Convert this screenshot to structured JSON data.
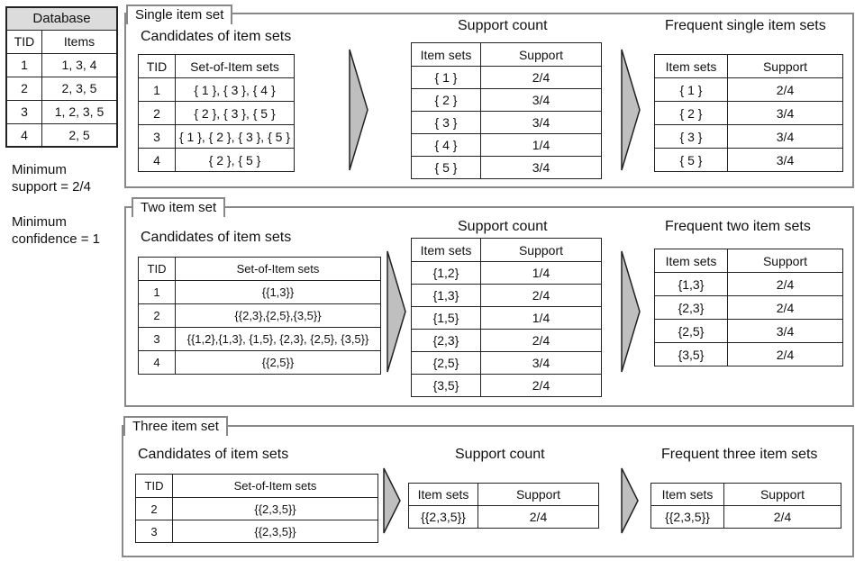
{
  "database": {
    "title": "Database",
    "headers": [
      "TID",
      "Items"
    ],
    "rows": [
      [
        "1",
        "1, 3, 4"
      ],
      [
        "2",
        "2, 3, 5"
      ],
      [
        "3",
        "1, 2, 3, 5"
      ],
      [
        "4",
        "2, 5"
      ]
    ]
  },
  "params": {
    "min_support": "Minimum\nsupport = 2/4",
    "min_support_l1": "Minimum",
    "min_support_l2": "support = 2/4",
    "min_conf_l1": "Minimum",
    "min_conf_l2": "confidence = 1"
  },
  "single": {
    "tab": "Single item set",
    "candidates_title": "Candidates of item sets",
    "cand_headers": [
      "TID",
      "Set-of-Item sets"
    ],
    "cand_rows": [
      [
        "1",
        "{ 1 }, { 3 }, { 4 }"
      ],
      [
        "2",
        "{ 2 }, { 3 }, { 5 }"
      ],
      [
        "3",
        "{ 1 }, { 2 }, { 3 }, { 5 }"
      ],
      [
        "4",
        "{ 2 }, { 5 }"
      ]
    ],
    "support_title": "Support count",
    "sup_headers": [
      "Item sets",
      "Support"
    ],
    "sup_rows": [
      [
        "{ 1 }",
        "2/4"
      ],
      [
        "{ 2 }",
        "3/4"
      ],
      [
        "{ 3 }",
        "3/4"
      ],
      [
        "{ 4 }",
        "1/4"
      ],
      [
        "{ 5 }",
        "3/4"
      ]
    ],
    "frequent_title": "Frequent single item sets",
    "freq_headers": [
      "Item sets",
      "Support"
    ],
    "freq_rows": [
      [
        "{ 1 }",
        "2/4"
      ],
      [
        "{ 2 }",
        "3/4"
      ],
      [
        "{ 3 }",
        "3/4"
      ],
      [
        "{ 5 }",
        "3/4"
      ]
    ]
  },
  "two": {
    "tab": "Two item set",
    "candidates_title": "Candidates of item sets",
    "cand_headers": [
      "TID",
      "Set-of-Item sets"
    ],
    "cand_rows": [
      [
        "1",
        "{{1,3}}"
      ],
      [
        "2",
        "{{2,3},{2,5},{3,5}}"
      ],
      [
        "3",
        "{{1,2},{1,3}, {1,5}, {2,3}, {2,5}, {3,5}}"
      ],
      [
        "4",
        "{{2,5}}"
      ]
    ],
    "support_title": "Support count",
    "sup_headers": [
      "Item sets",
      "Support"
    ],
    "sup_rows": [
      [
        "{1,2}",
        "1/4"
      ],
      [
        "{1,3}",
        "2/4"
      ],
      [
        "{1,5}",
        "1/4"
      ],
      [
        "{2,3}",
        "2/4"
      ],
      [
        "{2,5}",
        "3/4"
      ],
      [
        "{3,5}",
        "2/4"
      ]
    ],
    "frequent_title": "Frequent two item sets",
    "freq_headers": [
      "Item sets",
      "Support"
    ],
    "freq_rows": [
      [
        "{1,3}",
        "2/4"
      ],
      [
        "{2,3}",
        "2/4"
      ],
      [
        "{2,5}",
        "3/4"
      ],
      [
        "{3,5}",
        "2/4"
      ]
    ]
  },
  "three": {
    "tab": "Three item set",
    "candidates_title": "Candidates of item sets",
    "cand_headers": [
      "TID",
      "Set-of-Item sets"
    ],
    "cand_rows": [
      [
        "2",
        "{{2,3,5}}"
      ],
      [
        "3",
        "{{2,3,5}}"
      ]
    ],
    "support_title": "Support count",
    "sup_headers": [
      "Item sets",
      "Support"
    ],
    "sup_rows": [
      [
        "{{2,3,5}}",
        "2/4"
      ]
    ],
    "frequent_title": "Frequent three item sets",
    "freq_headers": [
      "Item sets",
      "Support"
    ],
    "freq_rows": [
      [
        "{{2,3,5}}",
        "2/4"
      ]
    ]
  },
  "colors": {
    "panel_border": "#888888",
    "arrow_fill": "#bfbfbf",
    "db_header_fill": "#dcdcdc"
  }
}
